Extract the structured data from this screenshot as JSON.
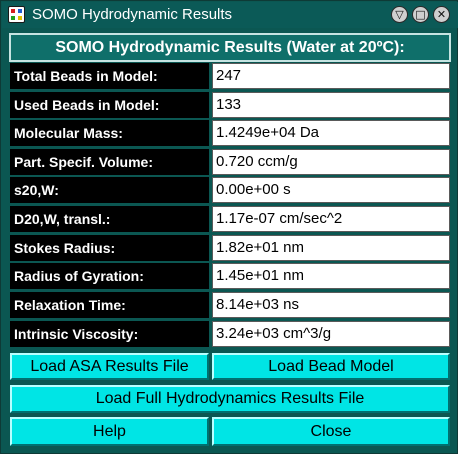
{
  "window": {
    "title": "SOMO Hydrodynamic Results",
    "controls": {
      "minimize": "▽",
      "maximize": "□",
      "close": "✕"
    }
  },
  "header": {
    "text": "SOMO Hydrodynamic Results (Water at 20ºC):"
  },
  "rows": [
    {
      "label": "Total Beads in Model:",
      "value": "247"
    },
    {
      "label": "Used Beads in Model:",
      "value": "133"
    },
    {
      "label": "Molecular Mass:",
      "value": "1.4249e+04 Da"
    },
    {
      "label": "Part. Specif. Volume:",
      "value": "0.720 ccm/g"
    },
    {
      "label": "s20,W:",
      "value": "0.00e+00 s"
    },
    {
      "label": "D20,W, transl.:",
      "value": "1.17e-07 cm/sec^2"
    },
    {
      "label": "Stokes Radius:",
      "value": "1.82e+01 nm"
    },
    {
      "label": "Radius of Gyration:",
      "value": "1.45e+01 nm"
    },
    {
      "label": "Relaxation Time:",
      "value": "8.14e+03 ns"
    },
    {
      "label": "Intrinsic Viscosity:",
      "value": "3.24e+03 cm^3/g"
    }
  ],
  "buttons": {
    "load_asa": "Load ASA Results File",
    "load_bead": "Load Bead Model",
    "load_full": "Load Full Hydrodynamics Results File",
    "help": "Help",
    "close": "Close"
  },
  "colors": {
    "titlebar": "#0b5a57",
    "background": "#0b5752",
    "label_bg": "#000000",
    "button_bg": "#00e5e5"
  }
}
